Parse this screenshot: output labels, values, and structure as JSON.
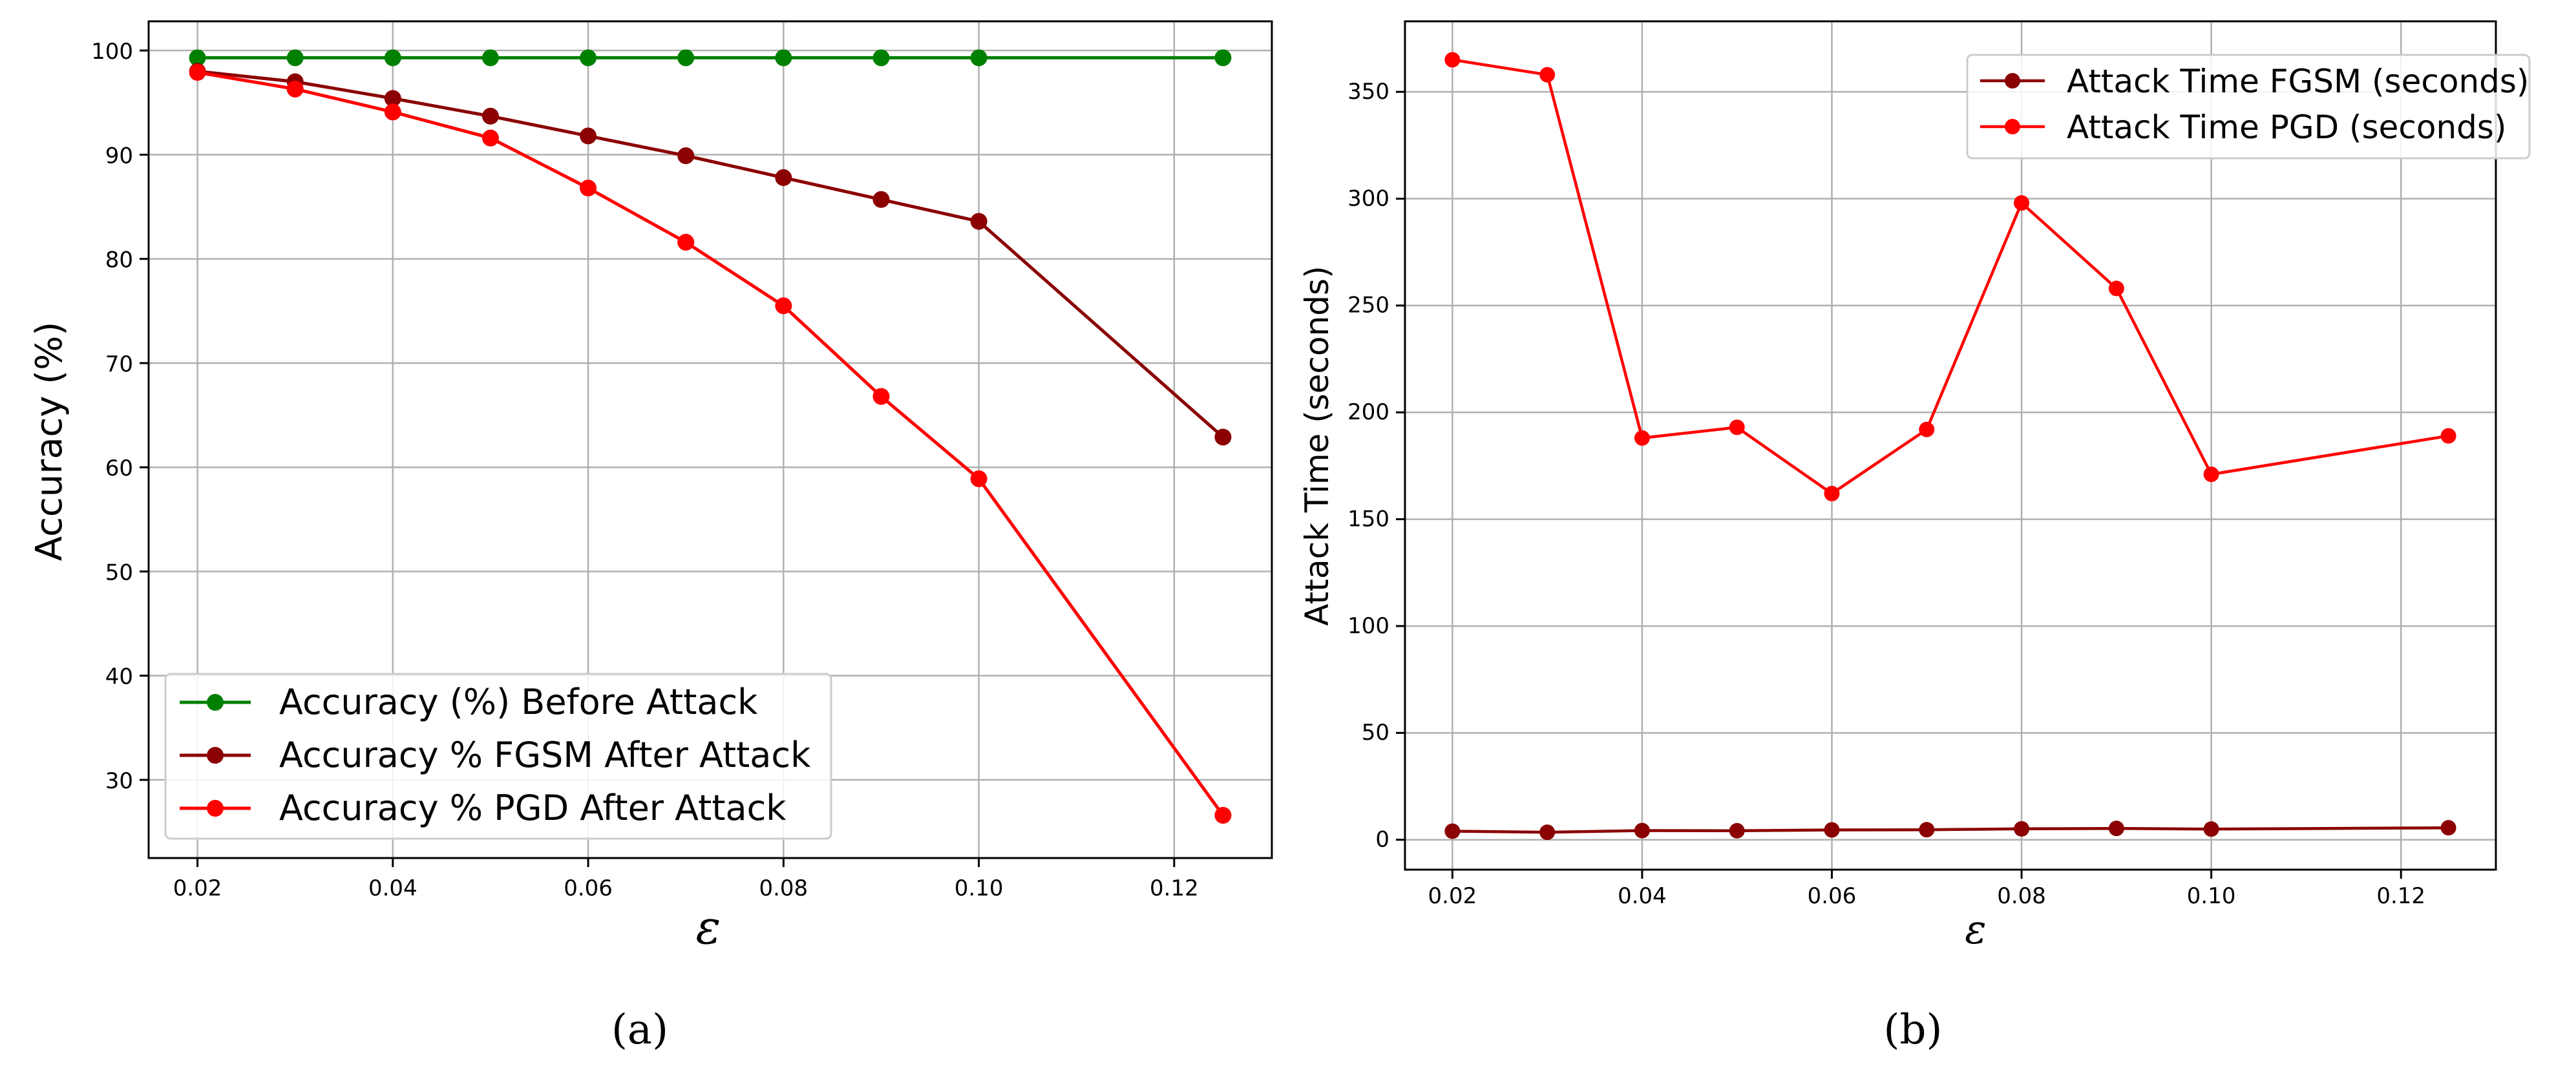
{
  "chart_data": [
    {
      "type": "line",
      "panel": "(a)",
      "xlabel": "ε",
      "ylabel": "Accuracy (%)",
      "xlim": [
        0.015,
        0.13
      ],
      "ylim": [
        22.5,
        102.8
      ],
      "xticks": [
        "0.02",
        "0.04",
        "0.06",
        "0.08",
        "0.10",
        "0.12"
      ],
      "yticks": [
        "30",
        "40",
        "50",
        "60",
        "70",
        "80",
        "90",
        "100"
      ],
      "grid": true,
      "legend": "lower-left",
      "x": [
        0.02,
        0.03,
        0.04,
        0.05,
        0.06,
        0.07,
        0.08,
        0.09,
        0.1,
        0.125
      ],
      "series": [
        {
          "name": "Accuracy (%) Before Attack",
          "color": "#008000",
          "values": [
            99.3,
            99.3,
            99.3,
            99.3,
            99.3,
            99.3,
            99.3,
            99.3,
            99.3,
            99.3
          ]
        },
        {
          "name": "Accuracy % FGSM After Attack",
          "color": "#8b0000",
          "values": [
            98.0,
            97.0,
            95.4,
            93.7,
            91.8,
            89.9,
            87.8,
            85.7,
            83.6,
            62.9
          ]
        },
        {
          "name": "Accuracy % PGD After Attack",
          "color": "#ff0000",
          "values": [
            97.9,
            96.3,
            94.1,
            91.6,
            86.8,
            81.6,
            75.5,
            66.8,
            58.9,
            26.6
          ]
        }
      ]
    },
    {
      "type": "line",
      "panel": "(b)",
      "xlabel": "ε",
      "ylabel": "Attack Time (seconds)",
      "xlim": [
        0.015,
        0.13
      ],
      "ylim": [
        -14,
        383
      ],
      "xticks": [
        "0.02",
        "0.04",
        "0.06",
        "0.08",
        "0.10",
        "0.12"
      ],
      "yticks": [
        "0",
        "50",
        "100",
        "150",
        "200",
        "250",
        "300",
        "350"
      ],
      "grid": true,
      "legend": "upper-right",
      "x": [
        0.02,
        0.03,
        0.04,
        0.05,
        0.06,
        0.07,
        0.08,
        0.09,
        0.1,
        0.125
      ],
      "series": [
        {
          "name": "Attack Time FGSM (seconds)",
          "color": "#8b0000",
          "values": [
            4,
            3.5,
            4.3,
            4.2,
            4.6,
            4.7,
            5.1,
            5.3,
            5.0,
            5.6
          ]
        },
        {
          "name": "Attack Time PGD (seconds)",
          "color": "#ff0000",
          "values": [
            365,
            358,
            188,
            193,
            162,
            192,
            298,
            258,
            171,
            189
          ]
        }
      ]
    }
  ]
}
